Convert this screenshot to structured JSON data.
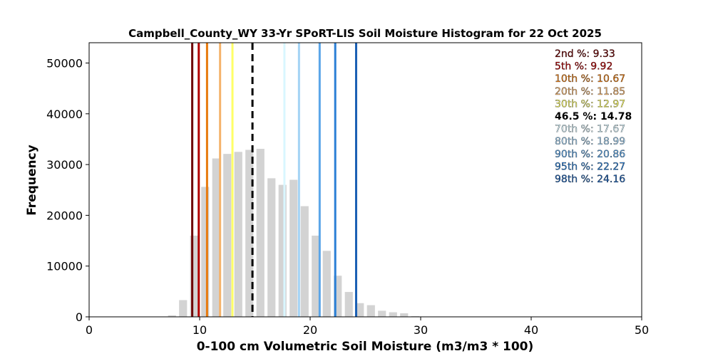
{
  "chart_data": {
    "type": "bar",
    "title": "Campbell_County_WY 33-Yr SPoRT-LIS Soil Moisture Histogram for 22 Oct 2025",
    "xlabel": "0-100 cm Volumetric Soil Moisture (m3/m3 * 100)",
    "ylabel": "Frequency",
    "xlim": [
      0,
      50
    ],
    "ylim": [
      0,
      54000
    ],
    "xticks": [
      "0",
      "10",
      "20",
      "30",
      "40",
      "50"
    ],
    "yticks": [
      "0",
      "10000",
      "20000",
      "30000",
      "40000",
      "50000"
    ],
    "bin_width": 1.0,
    "bar_color": "#d3d3d3",
    "bins": [
      {
        "x": 7.5,
        "y": 300
      },
      {
        "x": 8.5,
        "y": 3300
      },
      {
        "x": 9.5,
        "y": 16000
      },
      {
        "x": 10.5,
        "y": 25600
      },
      {
        "x": 11.5,
        "y": 31200
      },
      {
        "x": 12.5,
        "y": 32100
      },
      {
        "x": 13.5,
        "y": 32500
      },
      {
        "x": 14.5,
        "y": 32900
      },
      {
        "x": 15.5,
        "y": 33100
      },
      {
        "x": 16.5,
        "y": 27300
      },
      {
        "x": 17.5,
        "y": 26000
      },
      {
        "x": 18.5,
        "y": 27000
      },
      {
        "x": 19.5,
        "y": 21800
      },
      {
        "x": 20.5,
        "y": 16000
      },
      {
        "x": 21.5,
        "y": 13000
      },
      {
        "x": 22.5,
        "y": 8100
      },
      {
        "x": 23.5,
        "y": 4900
      },
      {
        "x": 24.5,
        "y": 2700
      },
      {
        "x": 25.5,
        "y": 2300
      },
      {
        "x": 26.5,
        "y": 1200
      },
      {
        "x": 27.5,
        "y": 900
      },
      {
        "x": 28.5,
        "y": 700
      },
      {
        "x": 29.5,
        "y": 150
      }
    ],
    "percentiles": [
      {
        "label": "2nd %",
        "value": 9.33,
        "display": "9.33",
        "color": "#6e0000",
        "dashed": false
      },
      {
        "label": "5th %",
        "value": 9.92,
        "display": "9.92",
        "color": "#b30000",
        "dashed": false
      },
      {
        "label": "10th %",
        "value": 10.67,
        "display": "10.67",
        "color": "#e8790c",
        "dashed": false
      },
      {
        "label": "20th %",
        "value": 11.85,
        "display": "11.85",
        "color": "#f5b36b",
        "dashed": false
      },
      {
        "label": "30th %",
        "value": 12.97,
        "display": "12.97",
        "color": "#ffff66",
        "dashed": false
      },
      {
        "label": "46.5 %",
        "value": 14.78,
        "display": "14.78",
        "color": "#000000",
        "dashed": true
      },
      {
        "label": "70th %",
        "value": 17.67,
        "display": "17.67",
        "color": "#d9f6ff",
        "dashed": false
      },
      {
        "label": "80th %",
        "value": 18.99,
        "display": "18.99",
        "color": "#a3d3f5",
        "dashed": false
      },
      {
        "label": "90th %",
        "value": 20.86,
        "display": "20.86",
        "color": "#5aa5e8",
        "dashed": false
      },
      {
        "label": "95th %",
        "value": 22.27,
        "display": "22.27",
        "color": "#2a7fd6",
        "dashed": false
      },
      {
        "label": "98th %",
        "value": 24.16,
        "display": "24.16",
        "color": "#1a5fb4",
        "dashed": false
      }
    ],
    "legend_placement": "top-right",
    "grid": false
  }
}
